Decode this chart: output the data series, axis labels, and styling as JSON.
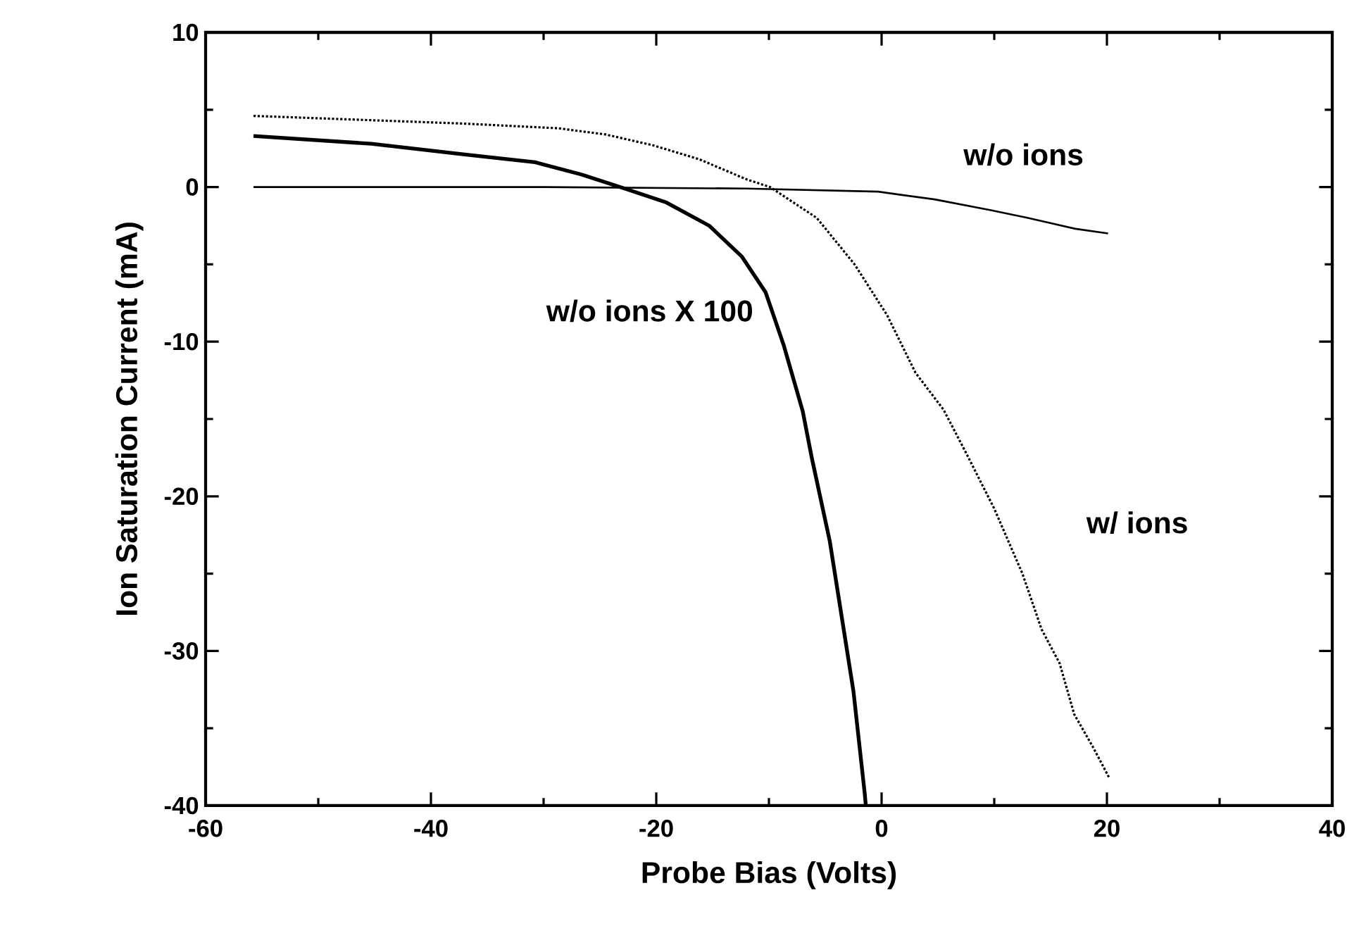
{
  "chart_data": {
    "type": "line",
    "xlabel": "Probe Bias (Volts)",
    "ylabel": "Ion Saturation Current (mA)",
    "xlim": [
      -60,
      40
    ],
    "xticks": [
      -60,
      -40,
      -20,
      0,
      20,
      40
    ],
    "ylim": [
      -40,
      10
    ],
    "yticks": [
      -40,
      -30,
      -20,
      -10,
      0,
      10
    ],
    "grid": false,
    "marker": "none",
    "series": [
      {
        "name": "w/o ions X 100",
        "color": "#000000",
        "line_style": "solid",
        "x": [
          -55.75,
          -45.3,
          -37,
          -30.75,
          -26.6,
          -22.8,
          -19.1,
          -15.3,
          -12.4,
          -10.3,
          -8.7,
          -7,
          -6.2,
          -4.6,
          -3.3,
          -2.5,
          -1.5,
          -1.4
        ],
        "values": [
          3.3,
          2.8,
          2.1,
          1.6,
          0.8,
          -0.1,
          -1.0,
          -2.5,
          -4.5,
          -6.8,
          -10.2,
          -14.5,
          -17.5,
          -22.9,
          -28.9,
          -32.6,
          -39.2,
          -40
        ]
      },
      {
        "name": "w/o ions",
        "color": "#000000",
        "line_style": "solid",
        "x": [
          -55.75,
          -30,
          -12,
          -0.3,
          4.7,
          9.7,
          13,
          17.2,
          20.1
        ],
        "values": [
          0,
          0,
          -0.1,
          -0.3,
          -0.8,
          -1.5,
          -2,
          -2.7,
          -3.0
        ]
      },
      {
        "name": "w/ ions",
        "color": "#000000",
        "line_style": "dotted",
        "x": [
          -55.75,
          -37,
          -28.7,
          -24.5,
          -20.3,
          -16.2,
          -12,
          -9.9,
          -5.75,
          -2.4,
          0.5,
          3,
          5.5,
          7.5,
          10,
          12.5,
          14.2,
          15.8,
          17.1,
          18.75,
          20.2
        ],
        "values": [
          4.6,
          4.1,
          3.8,
          3.4,
          2.7,
          1.8,
          0.5,
          0,
          -2.0,
          -5,
          -8.3,
          -12,
          -14.4,
          -17.2,
          -20.8,
          -25,
          -28.6,
          -30.8,
          -34.1,
          -36.2,
          -38.2
        ]
      }
    ]
  }
}
